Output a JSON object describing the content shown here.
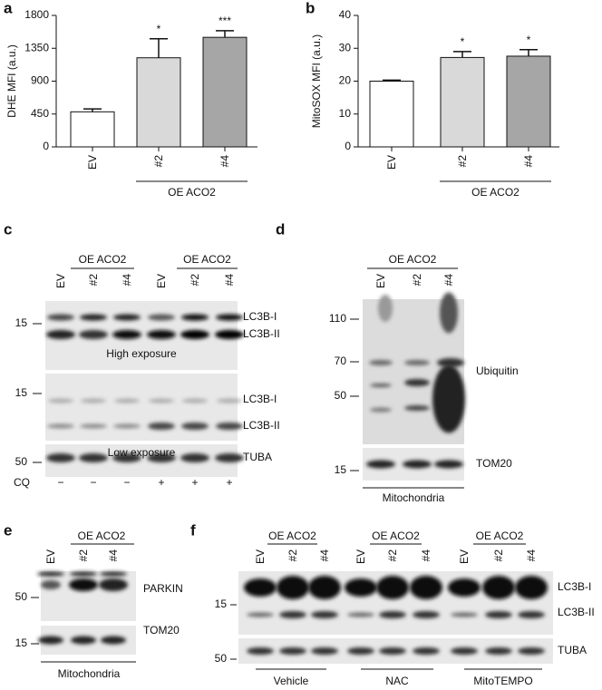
{
  "chart_data": [
    {
      "type": "bar",
      "panel": "a",
      "ylabel": "DHE MFI (a.u.)",
      "categories": [
        "EV",
        "#2",
        "#4"
      ],
      "values": [
        480,
        1220,
        1500
      ],
      "errors": [
        40,
        260,
        90
      ],
      "significance": [
        null,
        "*",
        "***"
      ],
      "colors": [
        "#ffffff",
        "#d9d9d9",
        "#a6a6a6"
      ],
      "group_label": "OE ACO2",
      "ylim": [
        0,
        1800
      ],
      "yticks": [
        0,
        450,
        900,
        1350,
        1800
      ]
    },
    {
      "type": "bar",
      "panel": "b",
      "ylabel": "MitoSOX MFI (a.u.)",
      "categories": [
        "EV",
        "#2",
        "#4"
      ],
      "values": [
        20,
        27.2,
        27.6
      ],
      "errors": [
        0.3,
        1.8,
        2
      ],
      "significance": [
        null,
        "*",
        "*"
      ],
      "colors": [
        "#ffffff",
        "#d9d9d9",
        "#a6a6a6"
      ],
      "group_label": "OE ACO2",
      "ylim": [
        0,
        40
      ],
      "yticks": [
        0,
        10,
        20,
        30,
        40
      ]
    }
  ],
  "blot_c": {
    "panel": "c",
    "group_labels": [
      "OE ACO2",
      "OE ACO2"
    ],
    "lanes": [
      "EV",
      "#2",
      "#4",
      "EV",
      "#2",
      "#4"
    ],
    "bands": [
      "LC3B-I",
      "LC3B-II",
      "LC3B-I",
      "LC3B-II",
      "TUBA"
    ],
    "exposures": [
      "High exposure",
      "Low exposure"
    ],
    "markers": [
      15,
      15,
      50
    ],
    "treatment_label": "CQ",
    "treatment": [
      "−",
      "−",
      "−",
      "+",
      "+",
      "+"
    ]
  },
  "blot_d": {
    "panel": "d",
    "group_label": "OE ACO2",
    "lanes": [
      "EV",
      "#2",
      "#4"
    ],
    "markers": [
      110,
      70,
      50,
      15
    ],
    "bands": [
      "Ubiquitin",
      "TOM20"
    ],
    "fraction": "Mitochondria"
  },
  "blot_e": {
    "panel": "e",
    "group_label": "OE ACO2",
    "lanes": [
      "EV",
      "#2",
      "#4"
    ],
    "markers": [
      50,
      15
    ],
    "bands": [
      "PARKIN",
      "TOM20"
    ],
    "fraction": "Mitochondria"
  },
  "blot_f": {
    "panel": "f",
    "group_labels": [
      "OE ACO2",
      "OE ACO2",
      "OE ACO2"
    ],
    "lanes": [
      "EV",
      "#2",
      "#4",
      "EV",
      "#2",
      "#4",
      "EV",
      "#2",
      "#4"
    ],
    "markers": [
      15,
      50
    ],
    "bands": [
      "LC3B-I",
      "LC3B-II",
      "TUBA"
    ],
    "treatments": [
      "Vehicle",
      "NAC",
      "MitoTEMPO"
    ]
  }
}
